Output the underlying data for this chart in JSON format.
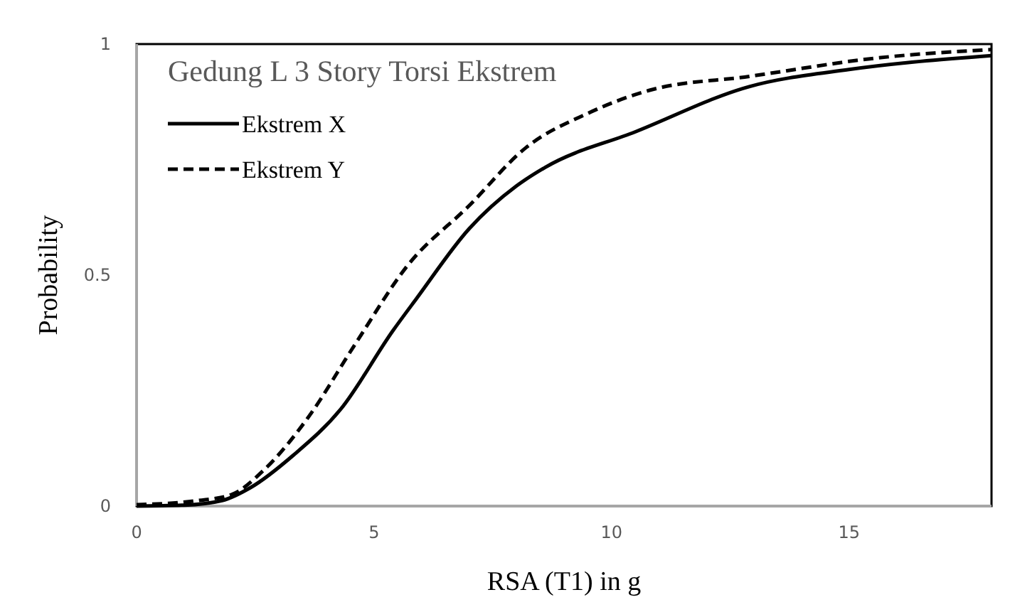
{
  "chart_data": {
    "type": "line",
    "title": "Gedung L 3 Story Torsi Ekstrem",
    "xlabel": "RSA (T1) in g",
    "ylabel": "Probability",
    "xlim": [
      0,
      18
    ],
    "xticks": [
      0,
      5,
      10,
      15
    ],
    "ylim": [
      0,
      1
    ],
    "yticks": [
      0,
      0.5,
      1
    ],
    "grid": false,
    "legend": "top left",
    "marker": "none",
    "series": [
      {
        "name": "Ekstrem X",
        "color": "#000000",
        "line_style": "solid",
        "x": [
          0,
          1,
          1.8,
          2.4,
          3.3,
          4.3,
          5.4,
          5.9,
          7,
          8,
          8.6,
          10.5,
          12.9,
          15,
          18
        ],
        "values": [
          0,
          0.002,
          0.012,
          0.04,
          0.11,
          0.21,
          0.38,
          0.45,
          0.6,
          0.693,
          0.733,
          0.81,
          0.908,
          0.945,
          0.975
        ]
      },
      {
        "name": "Ekstrem Y",
        "color": "#000000",
        "line_style": "dashed",
        "x": [
          0,
          1.3,
          2,
          2.7,
          3.6,
          4.6,
          5.7,
          7,
          8.2,
          9.5,
          10.8,
          12.9,
          15.6,
          18
        ],
        "values": [
          0.003,
          0.012,
          0.025,
          0.08,
          0.19,
          0.35,
          0.52,
          0.65,
          0.776,
          0.85,
          0.9,
          0.93,
          0.97,
          0.988
        ]
      }
    ]
  }
}
